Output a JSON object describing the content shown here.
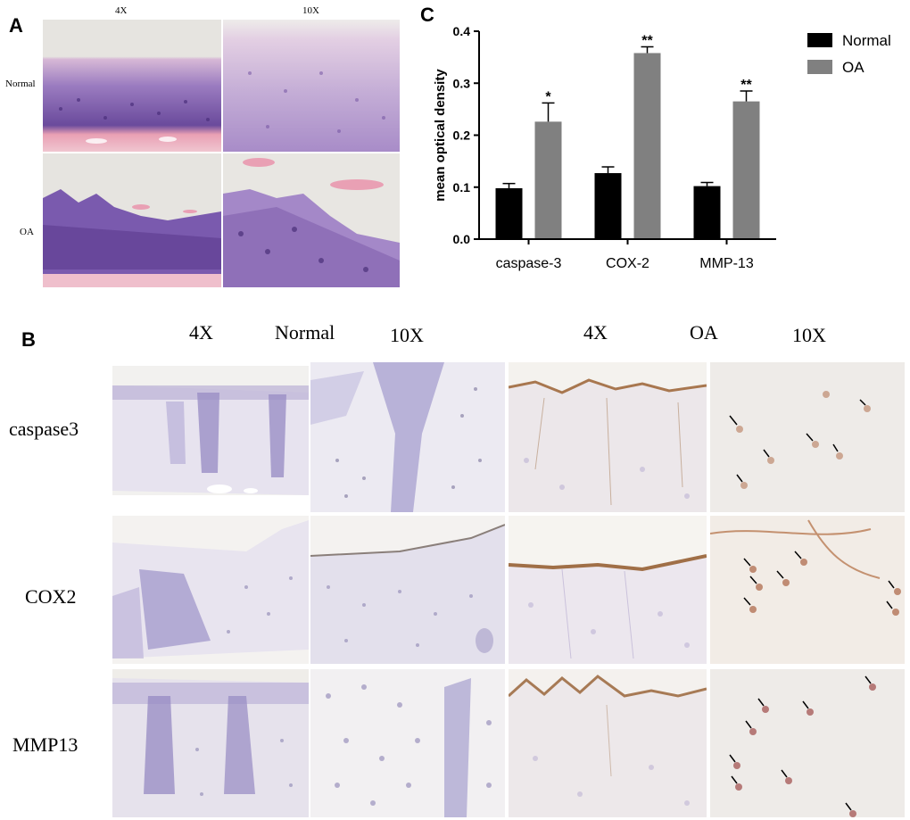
{
  "panel_a": {
    "letter": "A",
    "col_labels": [
      "4X",
      "10X"
    ],
    "row_labels": [
      "Normal",
      "OA"
    ]
  },
  "panel_b": {
    "letter": "B",
    "header": [
      "4X",
      "Normal",
      "10X",
      "4X",
      "OA",
      "10X"
    ],
    "row_labels": [
      "caspase3",
      "COX2",
      "MMP13"
    ]
  },
  "panel_c": {
    "letter": "C"
  },
  "chart_data": {
    "type": "bar",
    "categories": [
      "caspase-3",
      "COX-2",
      "MMP-13"
    ],
    "ylabel": "mean optical density",
    "ylim": [
      0,
      0.4
    ],
    "yticks": [
      "0.0",
      "0.1",
      "0.2",
      "0.3",
      "0.4"
    ],
    "legend_position": "top-right",
    "series": [
      {
        "name": "Normal",
        "color": "#000000",
        "values": [
          0.098,
          0.127,
          0.102
        ],
        "errors": [
          0.009,
          0.012,
          0.007
        ]
      },
      {
        "name": "OA",
        "color": "#808080",
        "values": [
          0.226,
          0.358,
          0.265
        ],
        "errors": [
          0.036,
          0.012,
          0.02
        ],
        "significance": [
          "*",
          "**",
          "**"
        ]
      }
    ]
  }
}
